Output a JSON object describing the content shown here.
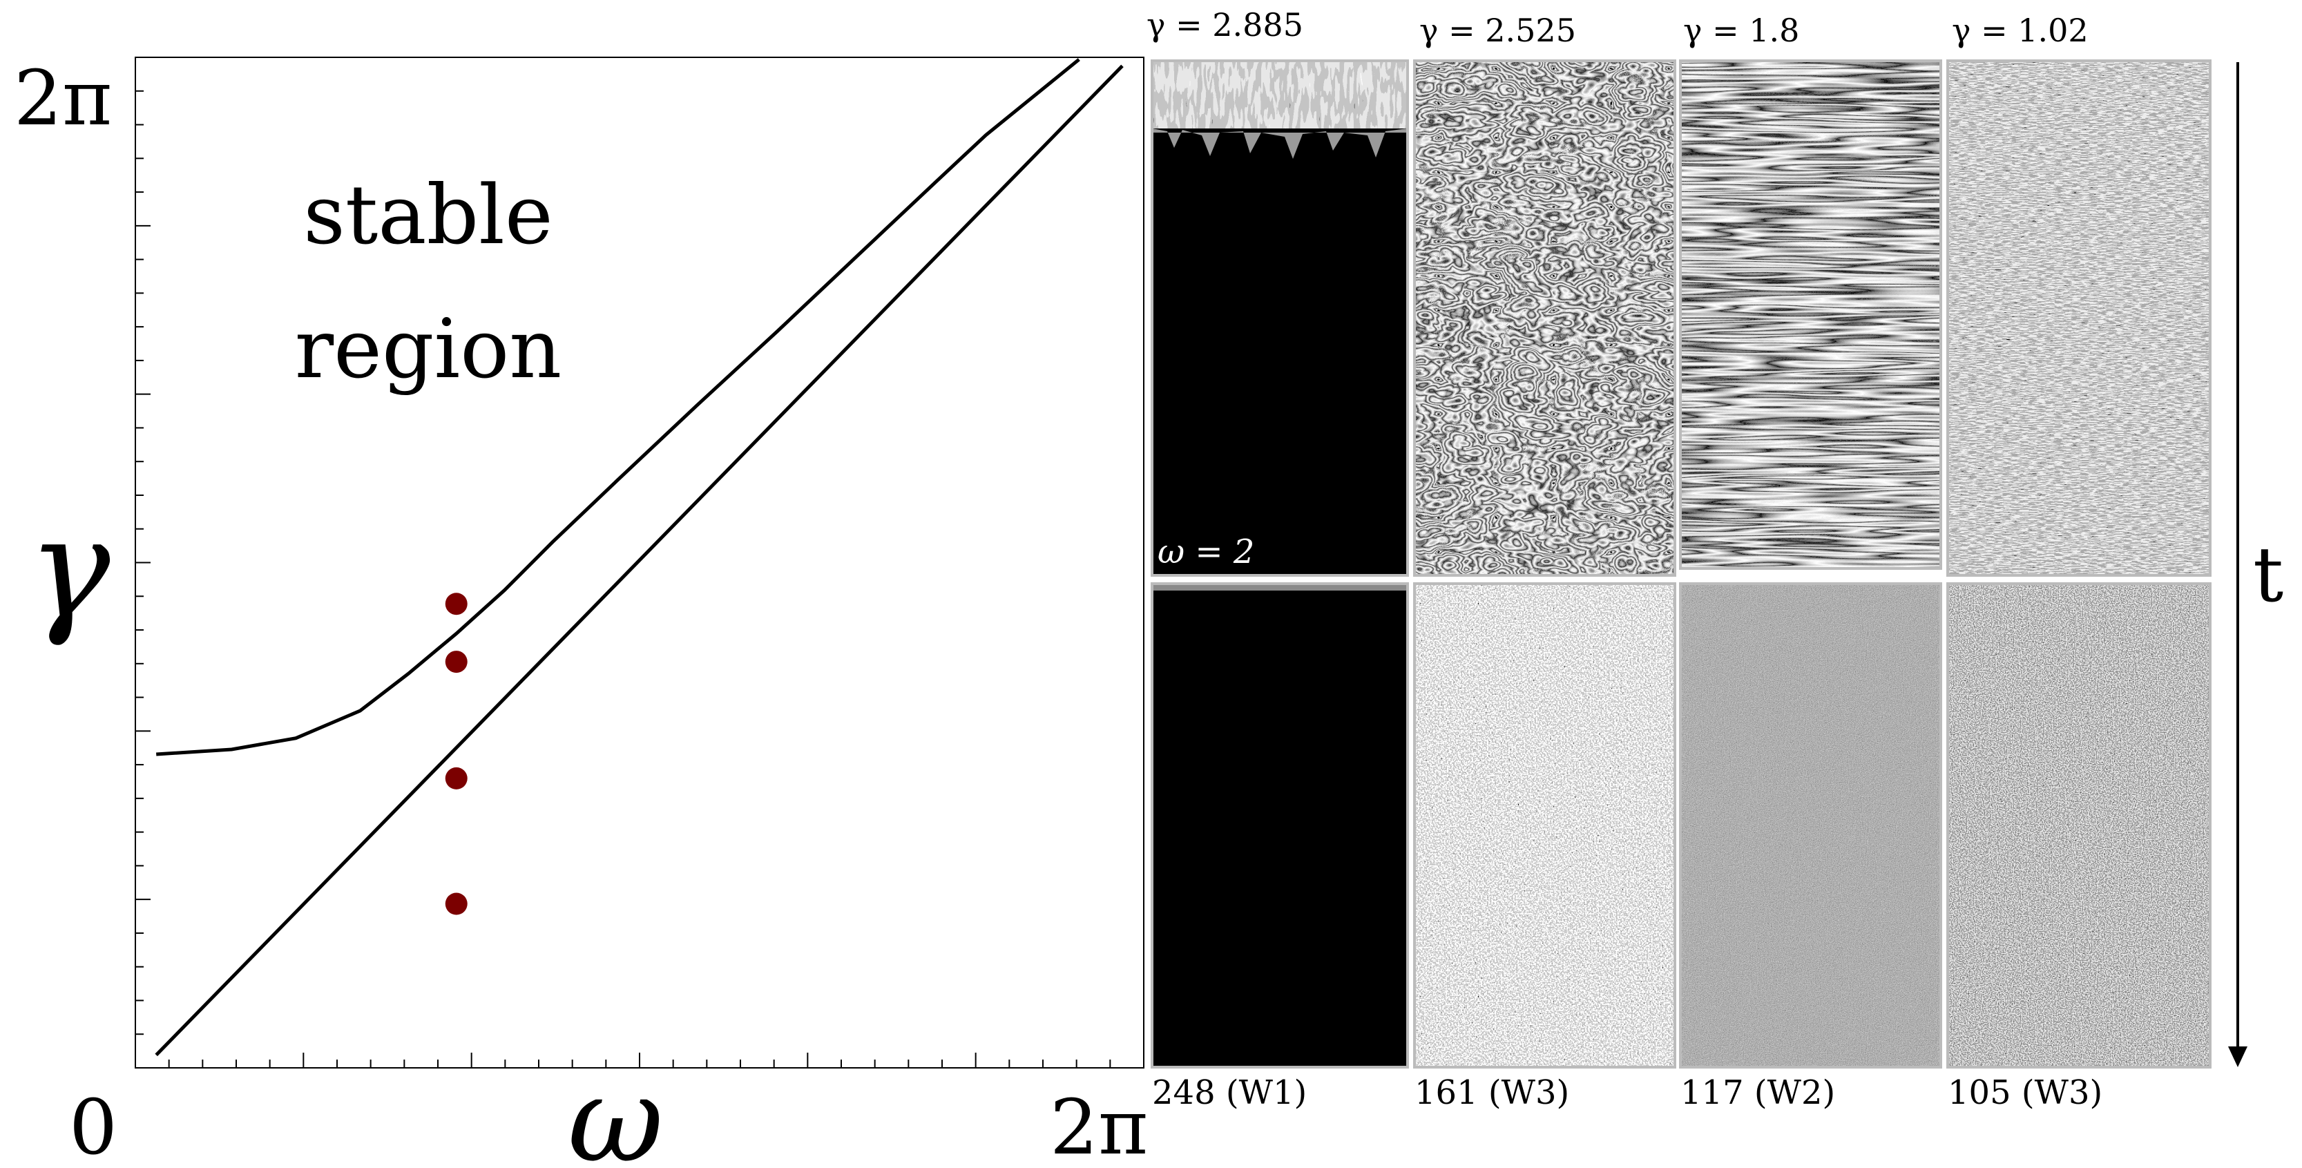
{
  "phase_diagram": {
    "type": "line",
    "x_axis": {
      "label": "ω",
      "min_label": "0",
      "max_label": "2π",
      "range": [
        0,
        6.2832
      ]
    },
    "y_axis": {
      "label": "γ",
      "max_label": "2π",
      "range": [
        0,
        6.2832
      ]
    },
    "annotation_line1": "stable",
    "annotation_line2": "region",
    "upper_boundary": [
      [
        0.13,
        1.95
      ],
      [
        0.6,
        1.98
      ],
      [
        1.0,
        2.05
      ],
      [
        1.4,
        2.22
      ],
      [
        1.7,
        2.45
      ],
      [
        2.0,
        2.7
      ],
      [
        2.3,
        2.97
      ],
      [
        2.6,
        3.27
      ],
      [
        3.0,
        3.65
      ],
      [
        3.5,
        4.12
      ],
      [
        4.0,
        4.58
      ],
      [
        4.5,
        5.05
      ],
      [
        5.0,
        5.52
      ],
      [
        5.3,
        5.8
      ],
      [
        5.88,
        6.27
      ]
    ],
    "lower_boundary": [
      [
        0.13,
        0.08
      ],
      [
        6.15,
        6.23
      ]
    ],
    "points": [
      {
        "omega": 2.0,
        "gamma": 2.885
      },
      {
        "omega": 2.0,
        "gamma": 2.525
      },
      {
        "omega": 2.0,
        "gamma": 1.8
      },
      {
        "omega": 2.0,
        "gamma": 1.02
      }
    ],
    "point_color": "#7b0000"
  },
  "panels": {
    "columns": [
      {
        "gamma_label": "γ = 2.885",
        "caption": "248 (W1)",
        "top_style": "black-mostly",
        "bottom_style": "black"
      },
      {
        "gamma_label": "γ = 2.525",
        "caption": "161 (W3)",
        "top_style": "turbulent",
        "bottom_style": "noise-coarse"
      },
      {
        "gamma_label": "γ = 1.8",
        "caption": "117 (W2)",
        "top_style": "waves",
        "bottom_style": "noise-fine"
      },
      {
        "gamma_label": "γ = 1.02",
        "caption": "105 (W3)",
        "top_style": "striped-noise",
        "bottom_style": "noise-medium"
      }
    ],
    "omega_label": "ω = 2",
    "time_label": "t"
  }
}
